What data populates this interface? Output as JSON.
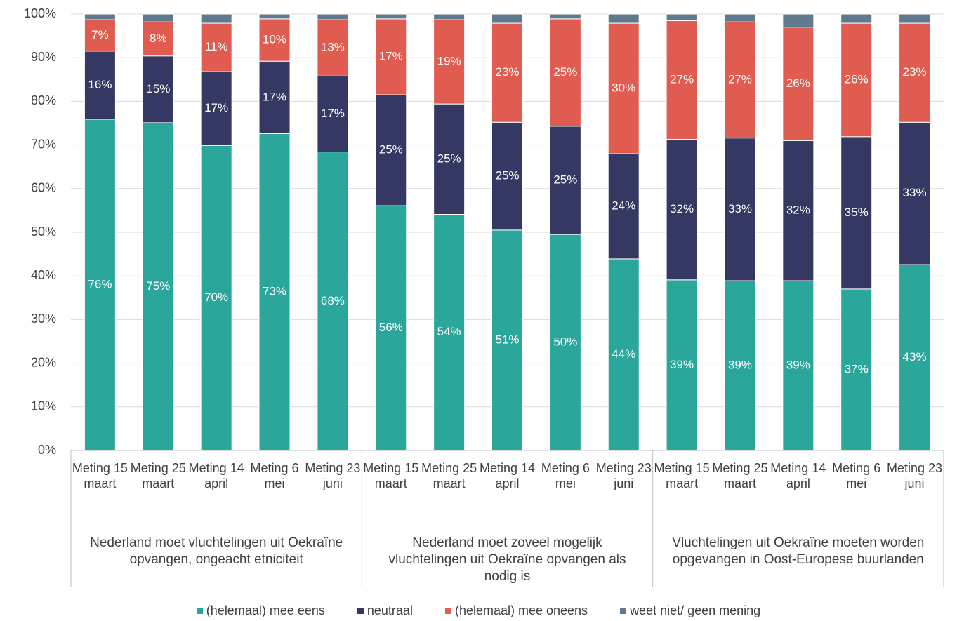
{
  "chart_data": {
    "type": "stacked_bar",
    "categories": [
      "Meting 15 maart",
      "Meting 25 maart",
      "Meting 14 april",
      "Meting 6 mei",
      "Meting 23 juni",
      "Meting 15 maart",
      "Meting 25 maart",
      "Meting 14 april",
      "Meting 6 mei",
      "Meting 23 juni",
      "Meting 15 maart",
      "Meting 25 maart",
      "Meting 14 april",
      "Meting 6 mei",
      "Meting 23 juni"
    ],
    "category_groups": [
      "Nederland moet vluchtelingen uit Oekraïne opvangen, ongeacht etniciteit",
      "Nederland moet zoveel mogelijk vluchtelingen uit Oekraïne opvangen als nodig is",
      "Vluchtelingen uit Oekraïne moeten worden opgevangen in Oost-Europese buurlanden"
    ],
    "series": [
      {
        "name": "(helemaal) mee eens",
        "color": "#2aa69a",
        "values": [
          75.9,
          75.1,
          69.9,
          72.6,
          68.4,
          56.1,
          54.1,
          50.5,
          49.5,
          43.9,
          39.1,
          38.9,
          38.9,
          37.0,
          42.6
        ],
        "value_labels": [
          "76%",
          "75%",
          "70%",
          "73%",
          "68%",
          "56%",
          "54%",
          "51%",
          "50%",
          "44%",
          "39%",
          "39%",
          "39%",
          "37%",
          "43%"
        ]
      },
      {
        "name": "neutraal",
        "color": "#353862",
        "values": [
          15.6,
          15.3,
          16.9,
          16.6,
          17.4,
          25.4,
          25.3,
          24.7,
          24.8,
          24.1,
          32.2,
          32.7,
          32.1,
          34.9,
          32.6
        ],
        "value_labels": [
          "16%",
          "15%",
          "17%",
          "17%",
          "17%",
          "25%",
          "25%",
          "25%",
          "25%",
          "24%",
          "32%",
          "33%",
          "32%",
          "35%",
          "33%"
        ]
      },
      {
        "name": "(helemaal) mee oneens",
        "color": "#e05c50",
        "values": [
          7.2,
          7.8,
          11.1,
          9.7,
          12.9,
          17.4,
          19.3,
          22.7,
          24.6,
          29.9,
          27.2,
          26.6,
          26.0,
          26.0,
          22.7
        ],
        "value_labels": [
          "7%",
          "8%",
          "11%",
          "10%",
          "13%",
          "17%",
          "19%",
          "23%",
          "25%",
          "30%",
          "27%",
          "27%",
          "26%",
          "26%",
          "23%"
        ]
      },
      {
        "name": "weet niet/ geen mening",
        "color": "#5f7a8e",
        "values": [
          1.3,
          1.8,
          2.1,
          1.1,
          1.3,
          1.1,
          1.3,
          2.1,
          1.1,
          2.1,
          1.5,
          1.8,
          3.0,
          2.1,
          2.1
        ]
      }
    ],
    "ylim": [
      0,
      100
    ],
    "yticks": [
      {
        "value": 0,
        "label": "0%"
      },
      {
        "value": 10,
        "label": "10%"
      },
      {
        "value": 20,
        "label": "20%"
      },
      {
        "value": 30,
        "label": "30%"
      },
      {
        "value": 40,
        "label": "40%"
      },
      {
        "value": 50,
        "label": "50%"
      },
      {
        "value": 60,
        "label": "60%"
      },
      {
        "value": 70,
        "label": "70%"
      },
      {
        "value": 80,
        "label": "80%"
      },
      {
        "value": 90,
        "label": "90%"
      },
      {
        "value": 100,
        "label": "100%"
      }
    ],
    "grid": true,
    "legend": "bottom"
  }
}
